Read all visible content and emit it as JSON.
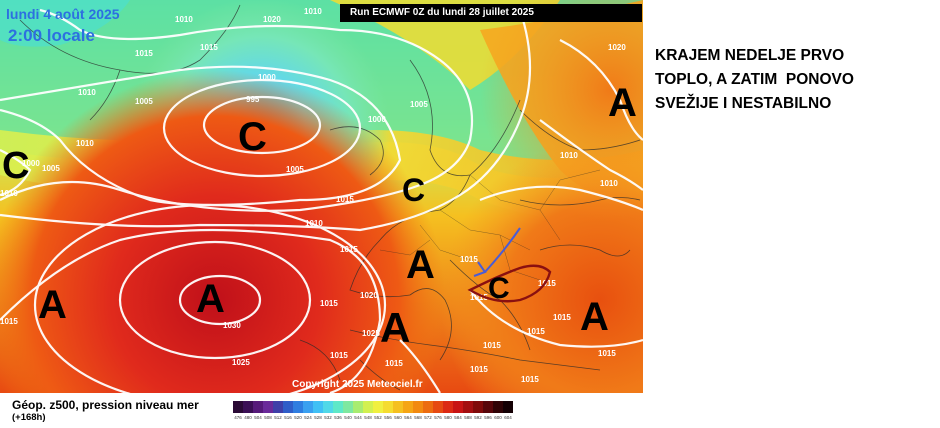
{
  "map": {
    "date_title": "lundi 4 août 2025",
    "time_title": "2:00 locale",
    "run_label": "Run ECMWF 0Z du lundi 28 juillet 2025",
    "copyright": "Copyright 2025 Meteociel.fr"
  },
  "headline": {
    "line1": "KRAJEM NEDELJE PRVO",
    "line2": "TOPLO, A ZATIM  PONOVO",
    "line3": "SVEŽIJE I NESTABILNO"
  },
  "pressure_systems": [
    {
      "type": "low",
      "label": "C",
      "region": "North Atlantic near Iceland"
    },
    {
      "type": "low",
      "label": "C",
      "region": "West of Greenland"
    },
    {
      "type": "low",
      "label": "C",
      "region": "North Sea"
    },
    {
      "type": "low",
      "label": "C",
      "region": "Pannonian basin"
    },
    {
      "type": "high",
      "label": "A",
      "region": "Azores"
    },
    {
      "type": "high",
      "label": "A",
      "region": "Mid Atlantic"
    },
    {
      "type": "high",
      "label": "A",
      "region": "Alps"
    },
    {
      "type": "high",
      "label": "A",
      "region": "Western Mediterranean"
    },
    {
      "type": "high",
      "label": "A",
      "region": "Black Sea"
    },
    {
      "type": "high",
      "label": "A",
      "region": "Northwest Russia"
    }
  ],
  "isobar_labels": [
    "1010",
    "1015",
    "1010",
    "1020",
    "1015",
    "1010",
    "1005",
    "1000",
    "995",
    "1000",
    "1005",
    "1000",
    "1005",
    "1010",
    "1010",
    "1005",
    "1015",
    "1010",
    "1020",
    "1010",
    "1015",
    "1015",
    "1020",
    "1030",
    "1025",
    "1025",
    "1015",
    "1015",
    "1015",
    "1015",
    "1015",
    "1015",
    "1015",
    "1015",
    "1015",
    "1010",
    "1015",
    "1015",
    "1015"
  ],
  "legend": {
    "title": "Géop. z500, pression niveau mer",
    "subtitle": "(+168h)",
    "scale_colors": [
      "#2a0a35",
      "#3b0f55",
      "#561a7a",
      "#6a2a9a",
      "#3f3fa8",
      "#2f5dc8",
      "#2f7de0",
      "#3aa0f0",
      "#40c0f5",
      "#50d8e8",
      "#5ee8c8",
      "#7ee8a0",
      "#a8ec70",
      "#d2f050",
      "#f0f040",
      "#f5dc30",
      "#f5c020",
      "#f5a515",
      "#f28a10",
      "#ec6c10",
      "#e64a12",
      "#dc2a14",
      "#c81414",
      "#a40e10",
      "#800a0a",
      "#58060a",
      "#300306",
      "#140004"
    ],
    "scale_labels": [
      "476",
      "480",
      "504",
      "508",
      "512",
      "516",
      "520",
      "524",
      "528",
      "532",
      "536",
      "540",
      "544",
      "548",
      "552",
      "556",
      "560",
      "564",
      "568",
      "572",
      "576",
      "580",
      "584",
      "588",
      "592",
      "596",
      "600",
      "604"
    ]
  }
}
